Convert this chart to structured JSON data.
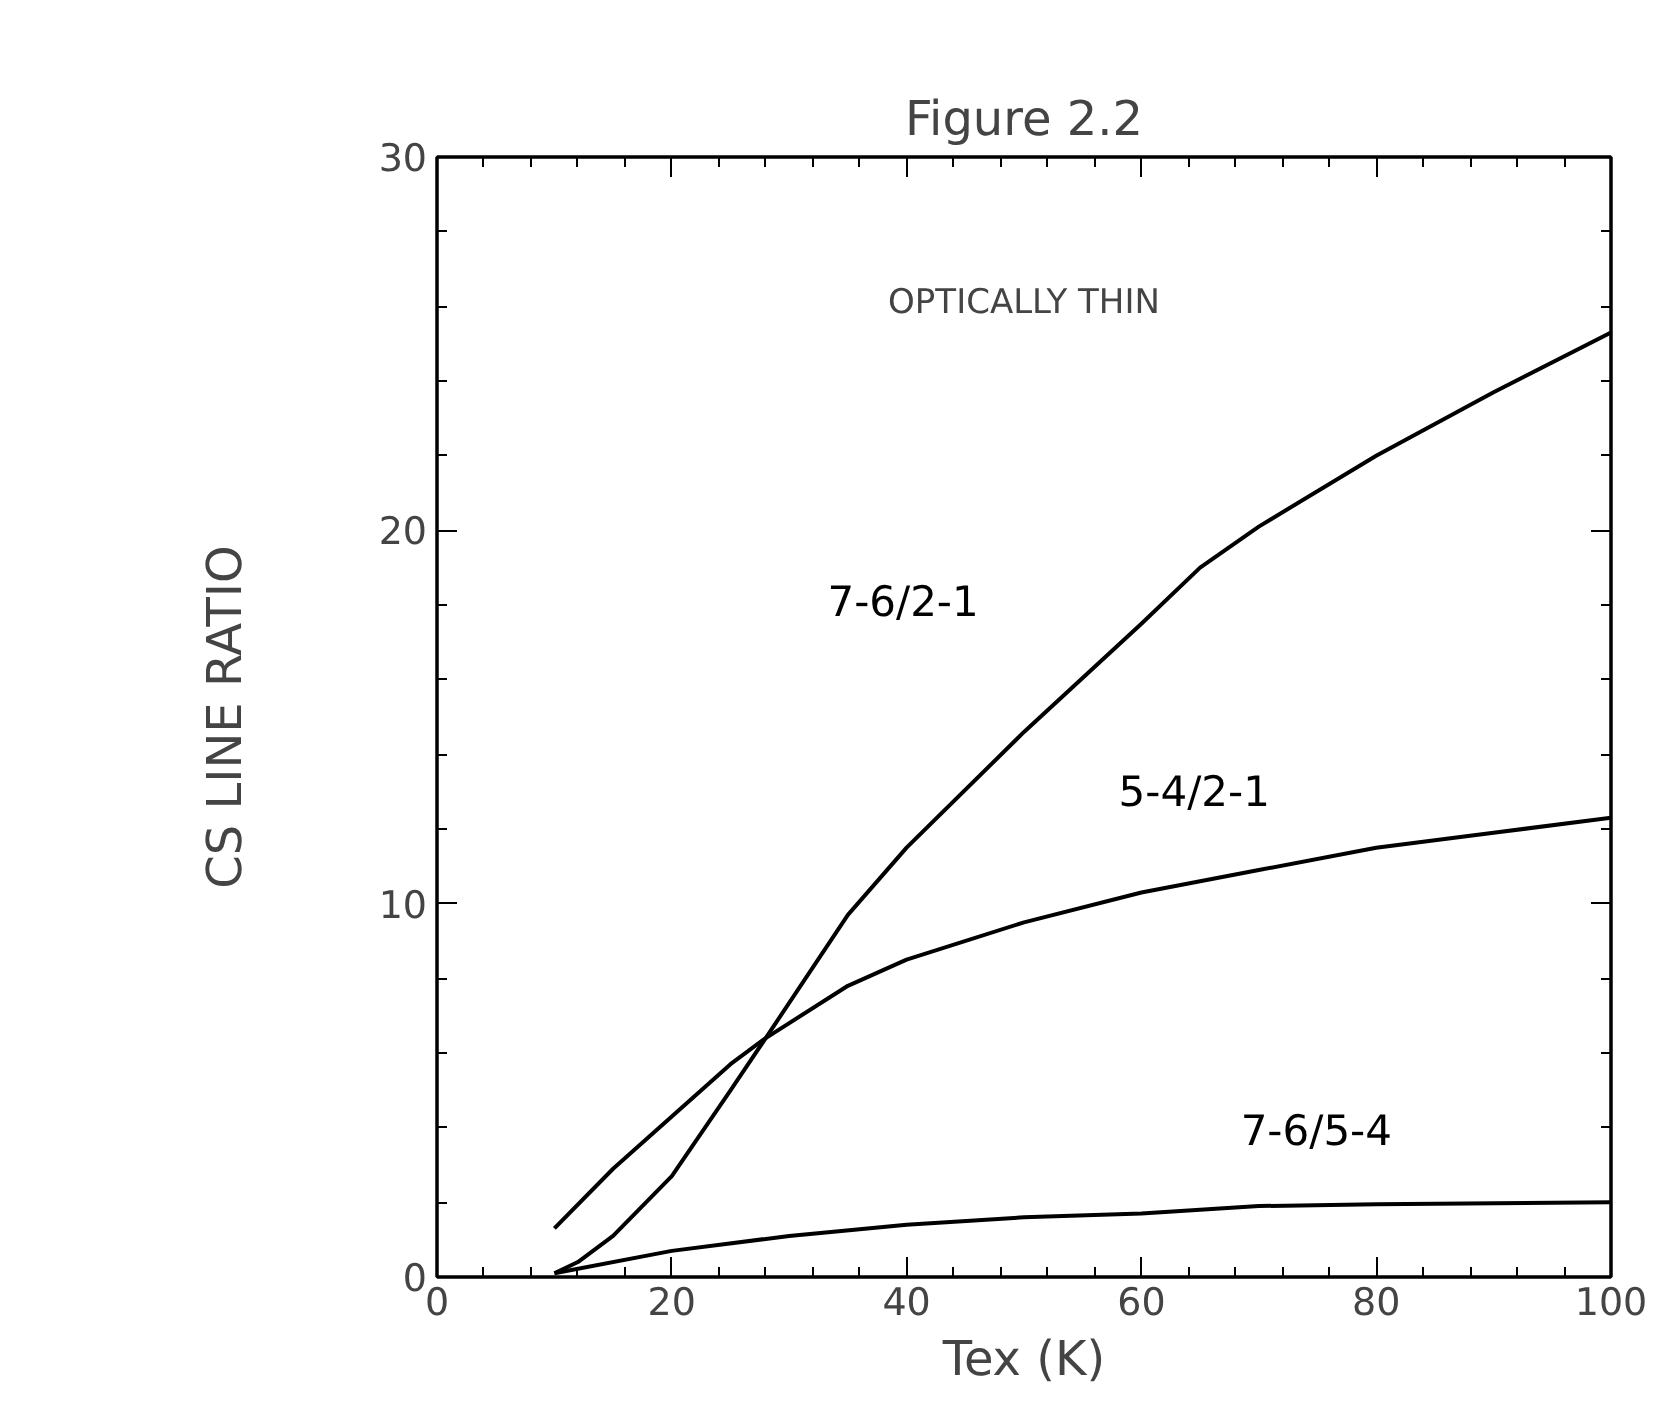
{
  "chart_data": {
    "type": "line",
    "title": "Figure 2.2",
    "xlabel": "Tex (K)",
    "ylabel": "CS LINE RATIO",
    "xlim": [
      0,
      100
    ],
    "ylim": [
      0,
      30
    ],
    "xticks": [
      0,
      20,
      40,
      60,
      80,
      100
    ],
    "yticks": [
      0,
      10,
      20,
      30
    ],
    "grid": false,
    "marker": "none",
    "line_style": "solid",
    "series": [
      {
        "name": "7-6/2-1",
        "color": "#000000",
        "x": [
          10,
          12,
          15,
          20,
          25,
          28,
          35,
          40,
          50,
          60,
          65,
          70,
          80,
          90,
          100
        ],
        "values": [
          0.1,
          0.4,
          1.1,
          2.7,
          5.0,
          6.4,
          9.7,
          11.5,
          14.6,
          17.5,
          19.0,
          20.1,
          22.0,
          23.7,
          25.3
        ]
      },
      {
        "name": "5-4/2-1",
        "color": "#000000",
        "x": [
          10,
          15,
          20,
          25,
          28,
          35,
          40,
          50,
          60,
          70,
          80,
          90,
          100
        ],
        "values": [
          1.3,
          2.9,
          4.3,
          5.7,
          6.4,
          7.8,
          8.5,
          9.5,
          10.3,
          10.9,
          11.5,
          11.9,
          12.3
        ]
      },
      {
        "name": "7-6/5-4",
        "color": "#000000",
        "x": [
          10,
          20,
          30,
          40,
          50,
          60,
          70,
          80,
          100
        ],
        "values": [
          0.1,
          0.7,
          1.1,
          1.4,
          1.6,
          1.7,
          1.9,
          1.95,
          2.0
        ]
      }
    ],
    "annotations": [
      "OPTICALLY THIN"
    ]
  }
}
